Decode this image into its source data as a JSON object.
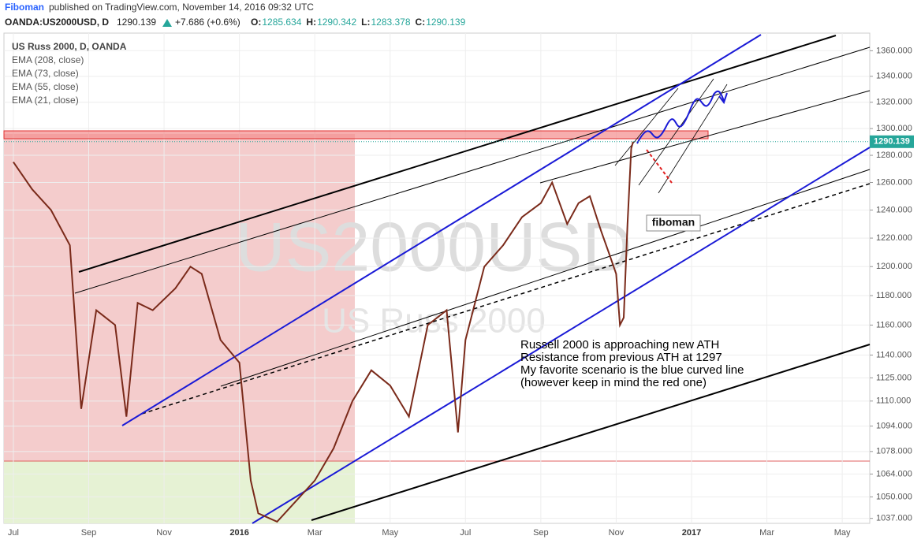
{
  "header": {
    "author": "Fiboman",
    "published": "published on TradingView.com, November 14, 2016 09:32 UTC",
    "symbol": "OANDA:US2000USD, D",
    "price": "1290.139",
    "change": "+7.686 (+0.6%)",
    "ohlc": [
      {
        "label": "O:",
        "value": "1285.634"
      },
      {
        "label": "H:",
        "value": "1290.342"
      },
      {
        "label": "L:",
        "value": "1283.378"
      },
      {
        "label": "C:",
        "value": "1290.139"
      }
    ]
  },
  "chart_data": {
    "type": "line",
    "log_scale": true,
    "watermark": "US2000USD",
    "watermark_sub": "US Russ 2000",
    "legend": [
      "EMA (208, close)",
      "EMA (73, close)",
      "EMA (55, close)",
      "EMA (21, close)"
    ],
    "annotations": [
      "Russell 2000 is approaching new ATH",
      "Resistance from previous ATH at 1297",
      "My favorite scenario is the blue curved line",
      "(however keep in mind the red one)"
    ],
    "signature": "fiboman",
    "x": [
      0,
      0.5,
      1,
      1.5,
      1.8,
      2.2,
      2.7,
      3.0,
      3.3,
      3.7,
      4.3,
      4.7,
      5.0,
      5.5,
      6.0,
      6.3,
      6.5,
      7.0,
      8.0,
      8.5,
      9.0,
      9.5,
      10.0,
      10.5,
      11.0,
      11.5,
      11.8,
      12.0,
      12.5,
      13.0,
      13.5,
      14.0,
      14.3,
      14.7,
      15.0,
      15.3,
      15.6,
      15.8,
      16.0,
      16.1,
      16.2,
      16.3,
      16.4,
      16.45
    ],
    "series": [
      {
        "name": "US Russ 2000, D, OANDA",
        "color": "#7a2a1a",
        "values": [
          1275,
          1255,
          1240,
          1215,
          1105,
          1170,
          1160,
          1100,
          1175,
          1170,
          1185,
          1200,
          1195,
          1150,
          1135,
          1060,
          1040,
          1035,
          1060,
          1080,
          1110,
          1130,
          1120,
          1100,
          1160,
          1170,
          1090,
          1150,
          1200,
          1215,
          1235,
          1245,
          1260,
          1230,
          1245,
          1250,
          1225,
          1210,
          1195,
          1160,
          1165,
          1230,
          1285,
          1290.139
        ]
      }
    ],
    "xlim": [
      -0.25,
      22.73
    ],
    "xticks": [
      {
        "value": 0,
        "label": "Jul"
      },
      {
        "value": 2,
        "label": "Sep"
      },
      {
        "value": 4,
        "label": "Nov"
      },
      {
        "value": 6,
        "label": "2016"
      },
      {
        "value": 8,
        "label": "Mar"
      },
      {
        "value": 10,
        "label": "May"
      },
      {
        "value": 12,
        "label": "Jul"
      },
      {
        "value": 14,
        "label": "Sep"
      },
      {
        "value": 16,
        "label": "Nov"
      },
      {
        "value": 18,
        "label": "2017"
      },
      {
        "value": 20,
        "label": "Mar"
      },
      {
        "value": 22,
        "label": "May"
      }
    ],
    "ylim": [
      1034,
      1374
    ],
    "yticks": [
      {
        "value": 1360,
        "label": "1360.000"
      },
      {
        "value": 1340,
        "label": "1340.000"
      },
      {
        "value": 1320,
        "label": "1320.000"
      },
      {
        "value": 1300,
        "label": "1300.000"
      },
      {
        "value": 1280,
        "label": "1280.000"
      },
      {
        "value": 1260,
        "label": "1260.000"
      },
      {
        "value": 1240,
        "label": "1240.000"
      },
      {
        "value": 1220,
        "label": "1220.000"
      },
      {
        "value": 1200,
        "label": "1200.000"
      },
      {
        "value": 1180,
        "label": "1180.000"
      },
      {
        "value": 1160,
        "label": "1160.000"
      },
      {
        "value": 1140,
        "label": "1140.000"
      },
      {
        "value": 1125,
        "label": "1125.000"
      },
      {
        "value": 1110,
        "label": "1110.000"
      },
      {
        "value": 1094,
        "label": "1094.000"
      },
      {
        "value": 1078,
        "label": "1078.000"
      },
      {
        "value": 1064,
        "label": "1064.000"
      },
      {
        "value": 1050,
        "label": "1050.000"
      },
      {
        "value": 1037,
        "label": "1037.000"
      }
    ]
  }
}
